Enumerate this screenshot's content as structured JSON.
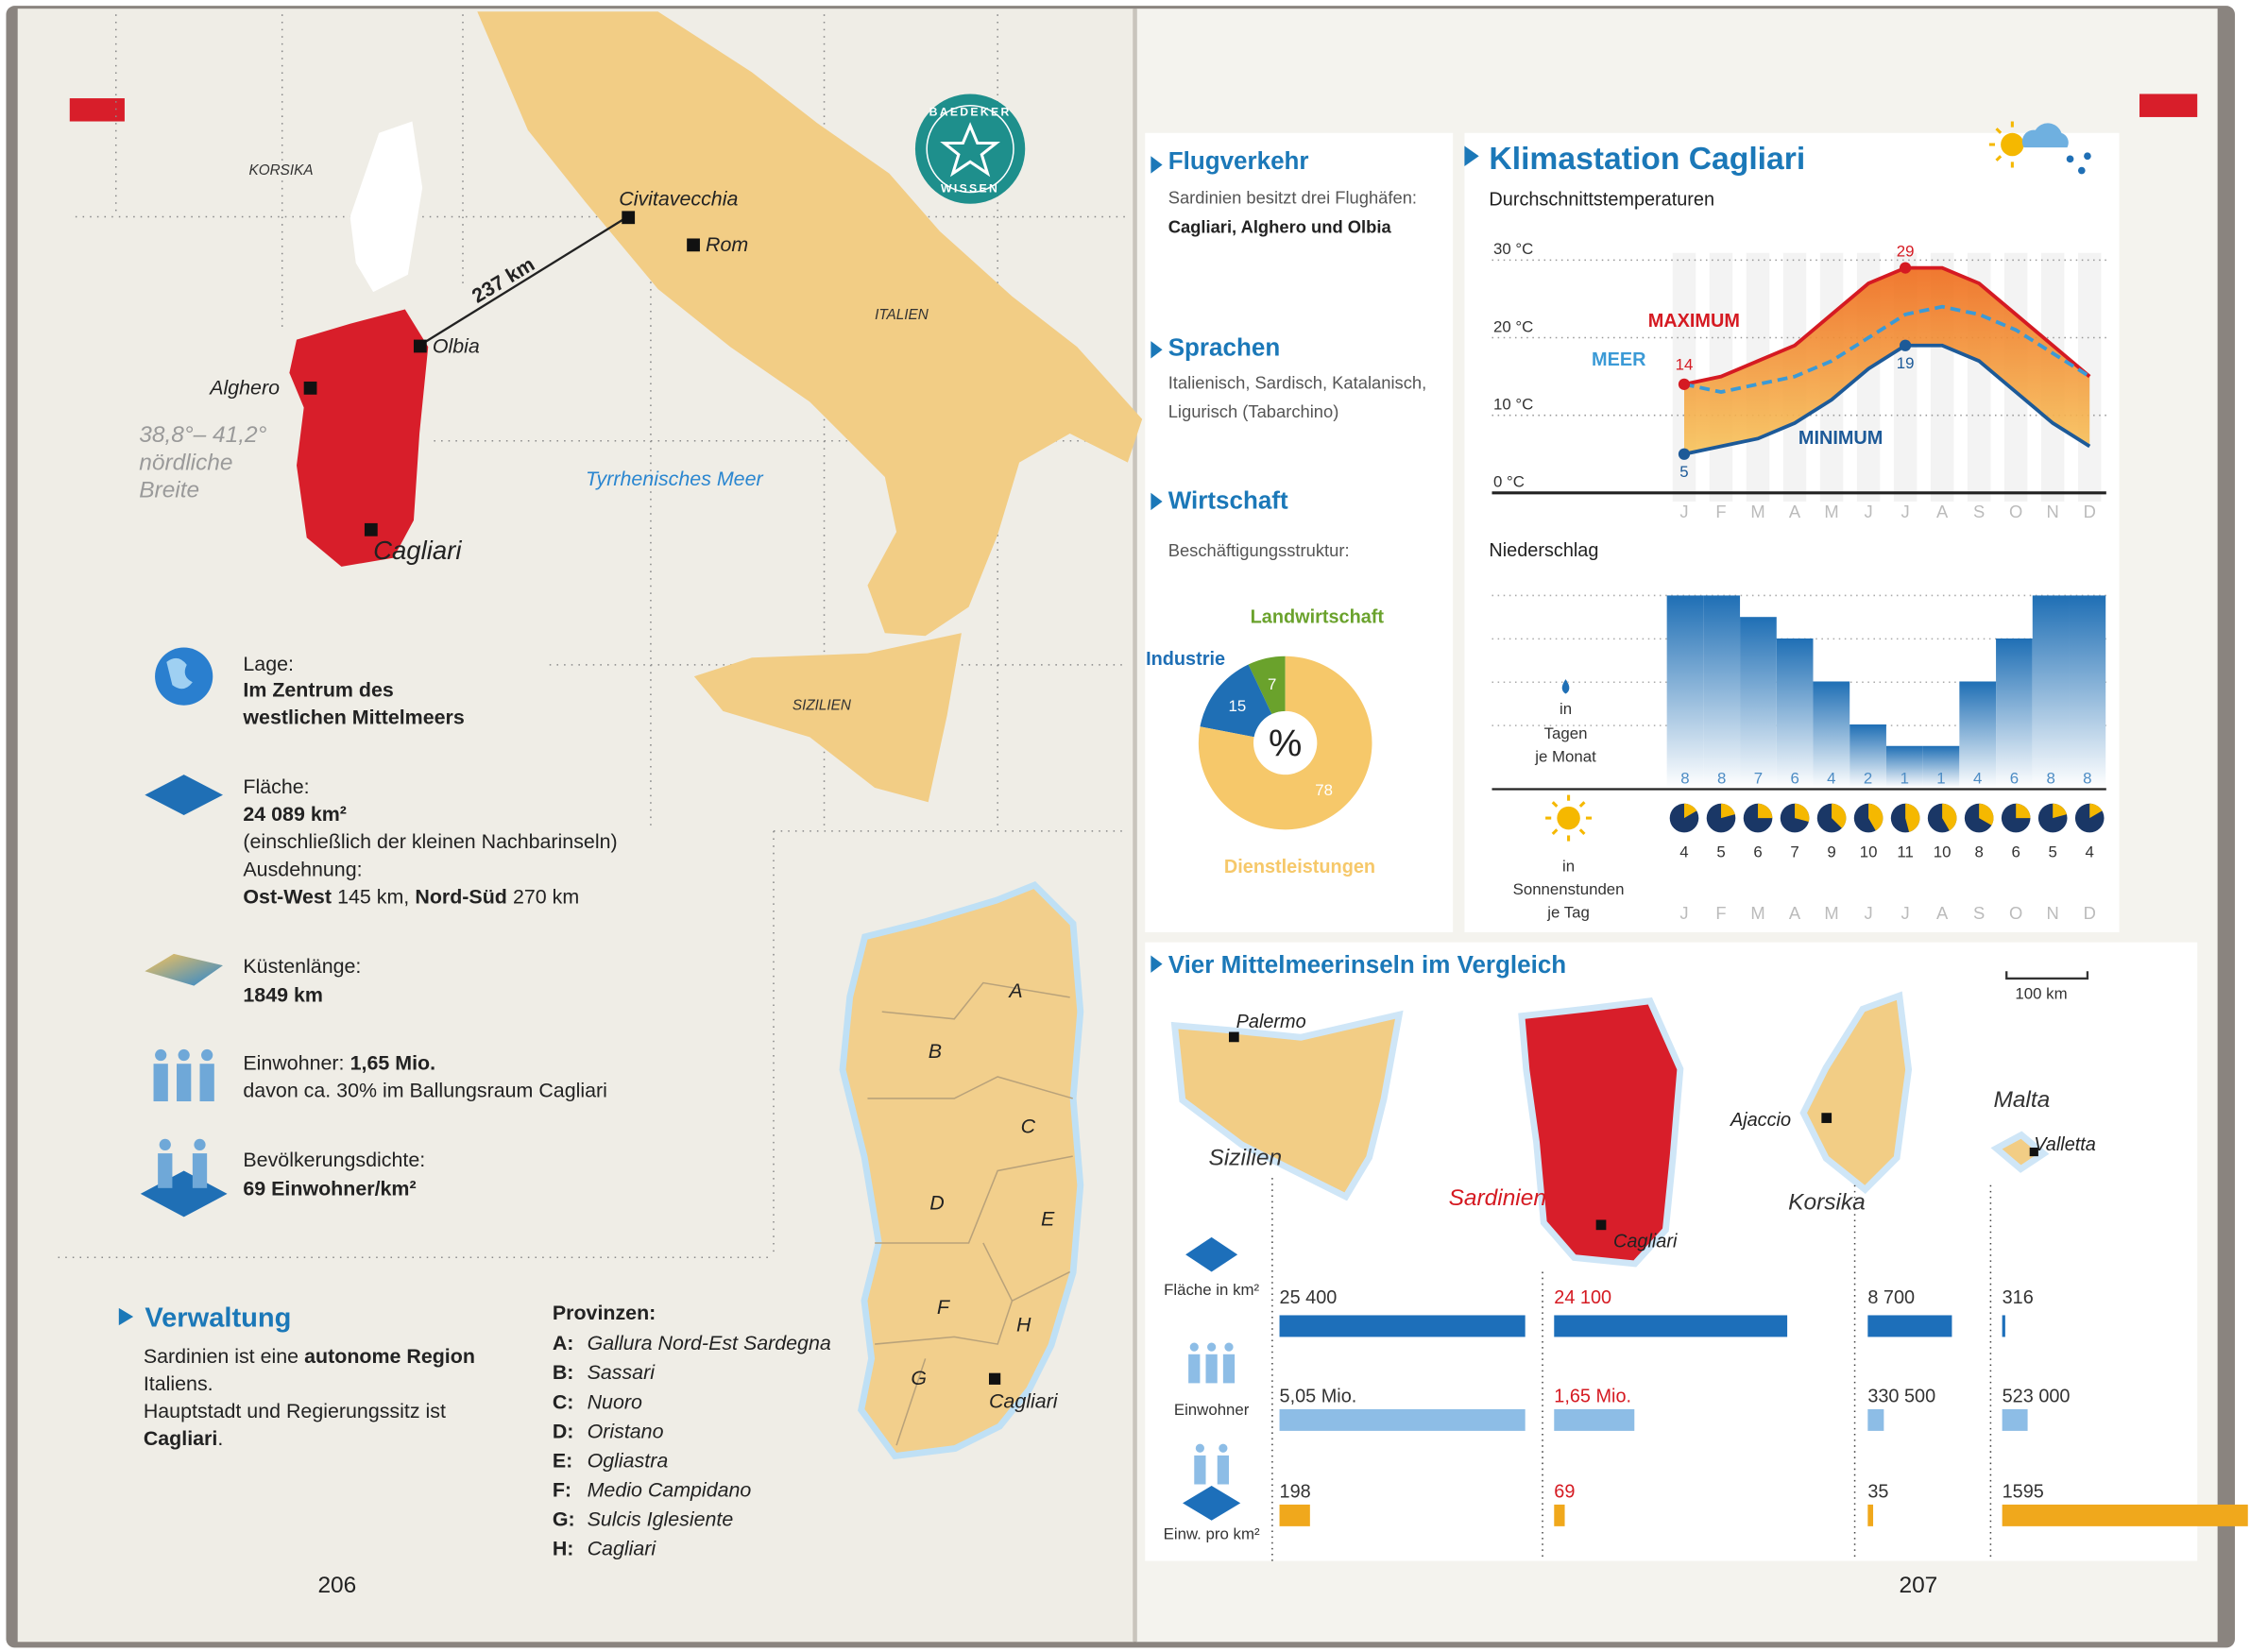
{
  "left_page": {
    "map": {
      "labels": {
        "korsika": "KORSIKA",
        "civitavecchia": "Civitavecchia",
        "rom": "Rom",
        "distance": "237 km",
        "olbia": "Olbia",
        "alghero": "Alghero",
        "italien": "ITALIEN",
        "cagliari": "Cagliari",
        "sea": "Tyrrhenisches Meer",
        "sizilien": "SIZILIEN"
      },
      "latitude": [
        "38,8°– 41,2°",
        "nördliche",
        "Breite"
      ]
    },
    "badge": {
      "top": "BAEDEKER",
      "bottom": "WISSEN"
    },
    "facts": {
      "lage": {
        "label": "Lage:",
        "text": [
          "Im Zentrum des",
          "westlichen Mittelmeers"
        ]
      },
      "flaeche": {
        "label": "Fläche:",
        "value": "24 089 km²",
        "note": "(einschließlich der kleinen Nachbarinseln)",
        "extent_label": "Ausdehnung:",
        "ew_label": "Ost-West",
        "ew": "145 km,",
        "ns_label": "Nord-Süd",
        "ns": "270 km"
      },
      "kueste": {
        "label": "Küstenlänge:",
        "value": "1849 km"
      },
      "einwohner": {
        "label": "Einwohner:",
        "value": "1,65 Mio.",
        "note": "davon ca. 30% im Ballungsraum Cagliari"
      },
      "dichte": {
        "label": "Bevölkerungsdichte:",
        "value": "69 Einwohner/km²"
      }
    },
    "verwaltung": {
      "title": "Verwaltung",
      "text": [
        "Sardinien ist eine",
        "autonome Region",
        "Italiens.",
        "Hauptstadt und Regierungssitz ist",
        "Cagliari",
        "."
      ]
    },
    "provinzen": {
      "title": "Provinzen:",
      "items": [
        [
          "A:",
          "Gallura Nord-Est Sardegna"
        ],
        [
          "B:",
          "Sassari"
        ],
        [
          "C:",
          "Nuoro"
        ],
        [
          "D:",
          "Oristano"
        ],
        [
          "E:",
          "Ogliastra"
        ],
        [
          "F:",
          "Medio Campidano"
        ],
        [
          "G:",
          "Sulcis Iglesiente"
        ],
        [
          "H:",
          "Cagliari"
        ]
      ]
    },
    "province_map": {
      "letters": [
        "A",
        "B",
        "C",
        "D",
        "E",
        "F",
        "G",
        "H"
      ],
      "capital": "Cagliari"
    },
    "page_number": "206"
  },
  "right_page": {
    "flugverkehr": {
      "title": "Flugverkehr",
      "text": "Sardinien besitzt drei Flughäfen:",
      "airports": "Cagliari, Alghero und Olbia"
    },
    "sprachen": {
      "title": "Sprachen",
      "text": [
        "Italienisch, Sardisch, Katalanisch,",
        "Ligurisch (Tabarchino)"
      ]
    },
    "wirtschaft": {
      "title": "Wirtschaft",
      "subtitle": "Beschäftigungsstruktur:"
    },
    "klima": {
      "title": "Klimastation Cagliari"
    },
    "vergleich": {
      "scale": "100 km"
    },
    "page_number": "207"
  },
  "chart_data": [
    {
      "type": "pie",
      "center_label": "%",
      "categories": [
        "Landwirtschaft",
        "Industrie",
        "Dienstleistungen"
      ],
      "values": [
        7,
        15,
        78
      ],
      "colors": [
        "#6aa22c",
        "#1f6fb5",
        "#f6c86a"
      ]
    },
    {
      "type": "line",
      "title": "Durchschnittstemperaturen",
      "categories": [
        "J",
        "F",
        "M",
        "A",
        "M",
        "J",
        "J",
        "A",
        "S",
        "O",
        "N",
        "D"
      ],
      "ylim": [
        -1,
        31
      ],
      "yticks": [
        {
          "value": 0,
          "label": "0 °C"
        },
        {
          "value": 10,
          "label": "10 °C"
        },
        {
          "value": 20,
          "label": "20 °C"
        },
        {
          "value": 30,
          "label": "30 °C"
        }
      ],
      "series": [
        {
          "name": "MAXIMUM",
          "color": "#d51a22",
          "values": [
            14,
            15,
            17,
            19,
            23,
            27,
            29,
            29,
            27,
            23,
            19,
            15
          ]
        },
        {
          "name": "MEER",
          "color": "#3b9ad6",
          "dash": true,
          "values": [
            14,
            13,
            14,
            15,
            17,
            20,
            23,
            24,
            23,
            21,
            18,
            15
          ]
        },
        {
          "name": "MINIMUM",
          "color": "#1d5a98",
          "values": [
            5,
            6,
            7,
            9,
            12,
            16,
            19,
            19,
            17,
            13,
            9,
            6
          ]
        }
      ]
    },
    {
      "type": "bar",
      "title": "Niederschlag",
      "unit_label": [
        "in",
        "Tagen",
        "je Monat"
      ],
      "values": [
        8,
        8,
        7,
        6,
        4,
        2,
        1,
        1,
        4,
        6,
        8,
        8
      ],
      "ylim": [
        0,
        8
      ],
      "color": "#1f6fb5"
    },
    {
      "type": "clock",
      "unit_label": [
        "in",
        "Sonnenstunden",
        "je Tag"
      ],
      "categories": [
        "J",
        "F",
        "M",
        "A",
        "M",
        "J",
        "J",
        "A",
        "S",
        "O",
        "N",
        "D"
      ],
      "values": [
        4,
        5,
        6,
        7,
        9,
        10,
        11,
        10,
        8,
        6,
        5,
        4
      ],
      "ylim": [
        0,
        24
      ],
      "color": "#f5b800"
    },
    {
      "type": "hbar",
      "title": "Vier Mittelmeerinseln im Vergleich",
      "categories": [
        "Sizilien",
        "Sardinien",
        "Korsika",
        "Malta"
      ],
      "capitals": [
        "Palermo",
        "Cagliari",
        "Ajaccio",
        "Valletta"
      ],
      "label_colors": [
        "#333333",
        "#d51a22",
        "#333333",
        "#333333"
      ],
      "series": [
        {
          "name": "Fläche in km²",
          "color": "#1d6fba",
          "values": [
            25400,
            24100,
            8700,
            316
          ],
          "value_labels": [
            "25 400",
            "24 100",
            "8 700",
            "316"
          ]
        },
        {
          "name": "Einwohner",
          "color": "#8dbde6",
          "values": [
            5050000,
            1650000,
            330500,
            523000
          ],
          "value_labels": [
            "5,05 Mio.",
            "1,65 Mio.",
            "330 500",
            "523 000"
          ]
        },
        {
          "name": "Einw. pro km²",
          "color": "#f0a81c",
          "values": [
            198,
            69,
            35,
            1595
          ]
        }
      ]
    }
  ]
}
